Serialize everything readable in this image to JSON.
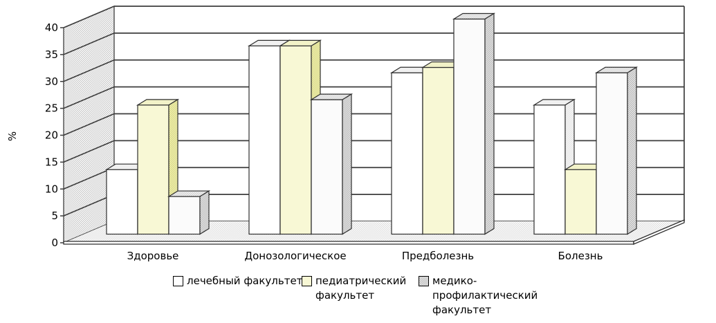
{
  "chart_data": {
    "type": "bar",
    "style": "3d-clustered-column",
    "title": "",
    "xlabel": "",
    "ylabel": "%",
    "categories": [
      "Здоровье",
      "Донозологическое",
      "Предболезнь",
      "Болезнь"
    ],
    "series": [
      {
        "name": "лечебный факультет",
        "color": "#FFFFFF",
        "values": [
          12,
          35,
          30,
          24
        ]
      },
      {
        "name": "педиатрический факультет",
        "color": "#F8F8D5",
        "values": [
          24,
          35,
          31,
          12
        ]
      },
      {
        "name": "медико-профилактический факультет",
        "color": "#FBFBFB",
        "pattern": "gray-dots",
        "values": [
          7,
          25,
          40,
          30
        ]
      }
    ],
    "ylim": [
      0,
      40
    ],
    "yticks": [
      0,
      5,
      10,
      15,
      20,
      25,
      30,
      35,
      40
    ],
    "grid": true,
    "legend_position": "bottom",
    "legend_wrapped": [
      [
        "лечебный факультет"
      ],
      [
        "педиатрический",
        "факультет"
      ],
      [
        "медико-",
        "профилактический",
        "факультет"
      ]
    ]
  }
}
